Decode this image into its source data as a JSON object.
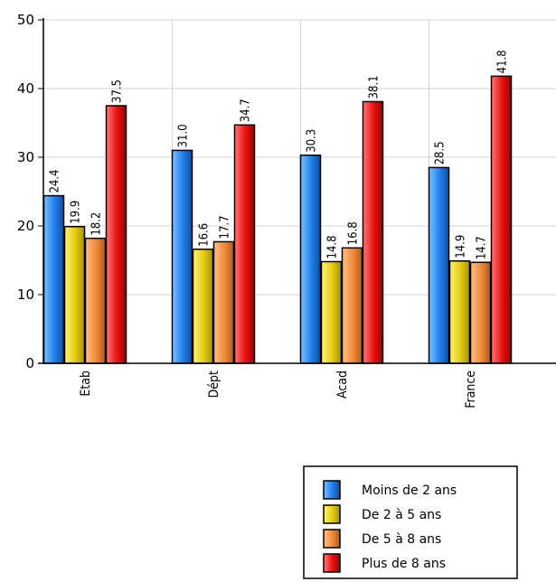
{
  "chart_data": {
    "type": "bar",
    "categories": [
      "Etab",
      "Dépt",
      "Acad",
      "France"
    ],
    "series": [
      {
        "name": "Moins de 2 ans",
        "values": [
          24.4,
          31.0,
          30.3,
          28.5
        ],
        "labels": [
          "24.4",
          "31.0",
          "30.3",
          "28.5"
        ],
        "color": "#1f7fe8"
      },
      {
        "name": "De 2 à 5 ans",
        "values": [
          19.9,
          16.6,
          14.8,
          14.9
        ],
        "labels": [
          "19.9",
          "16.6",
          "14.8",
          "14.9"
        ],
        "color": "#e8d21f"
      },
      {
        "name": "De 5 à 8 ans",
        "values": [
          18.2,
          17.7,
          16.8,
          14.7
        ],
        "labels": [
          "18.2",
          "17.7",
          "16.8",
          "14.7"
        ],
        "color": "#ee8a3a"
      },
      {
        "name": "Plus de 8 ans",
        "values": [
          37.5,
          34.7,
          38.1,
          41.8
        ],
        "labels": [
          "37.5",
          "34.7",
          "38.1",
          "41.8"
        ],
        "color": "#e81010"
      }
    ],
    "ylim": [
      0,
      50
    ],
    "yticks": [
      "0",
      "10",
      "20",
      "30",
      "40",
      "50"
    ],
    "grid": true,
    "legend_position": "bottom-right"
  }
}
